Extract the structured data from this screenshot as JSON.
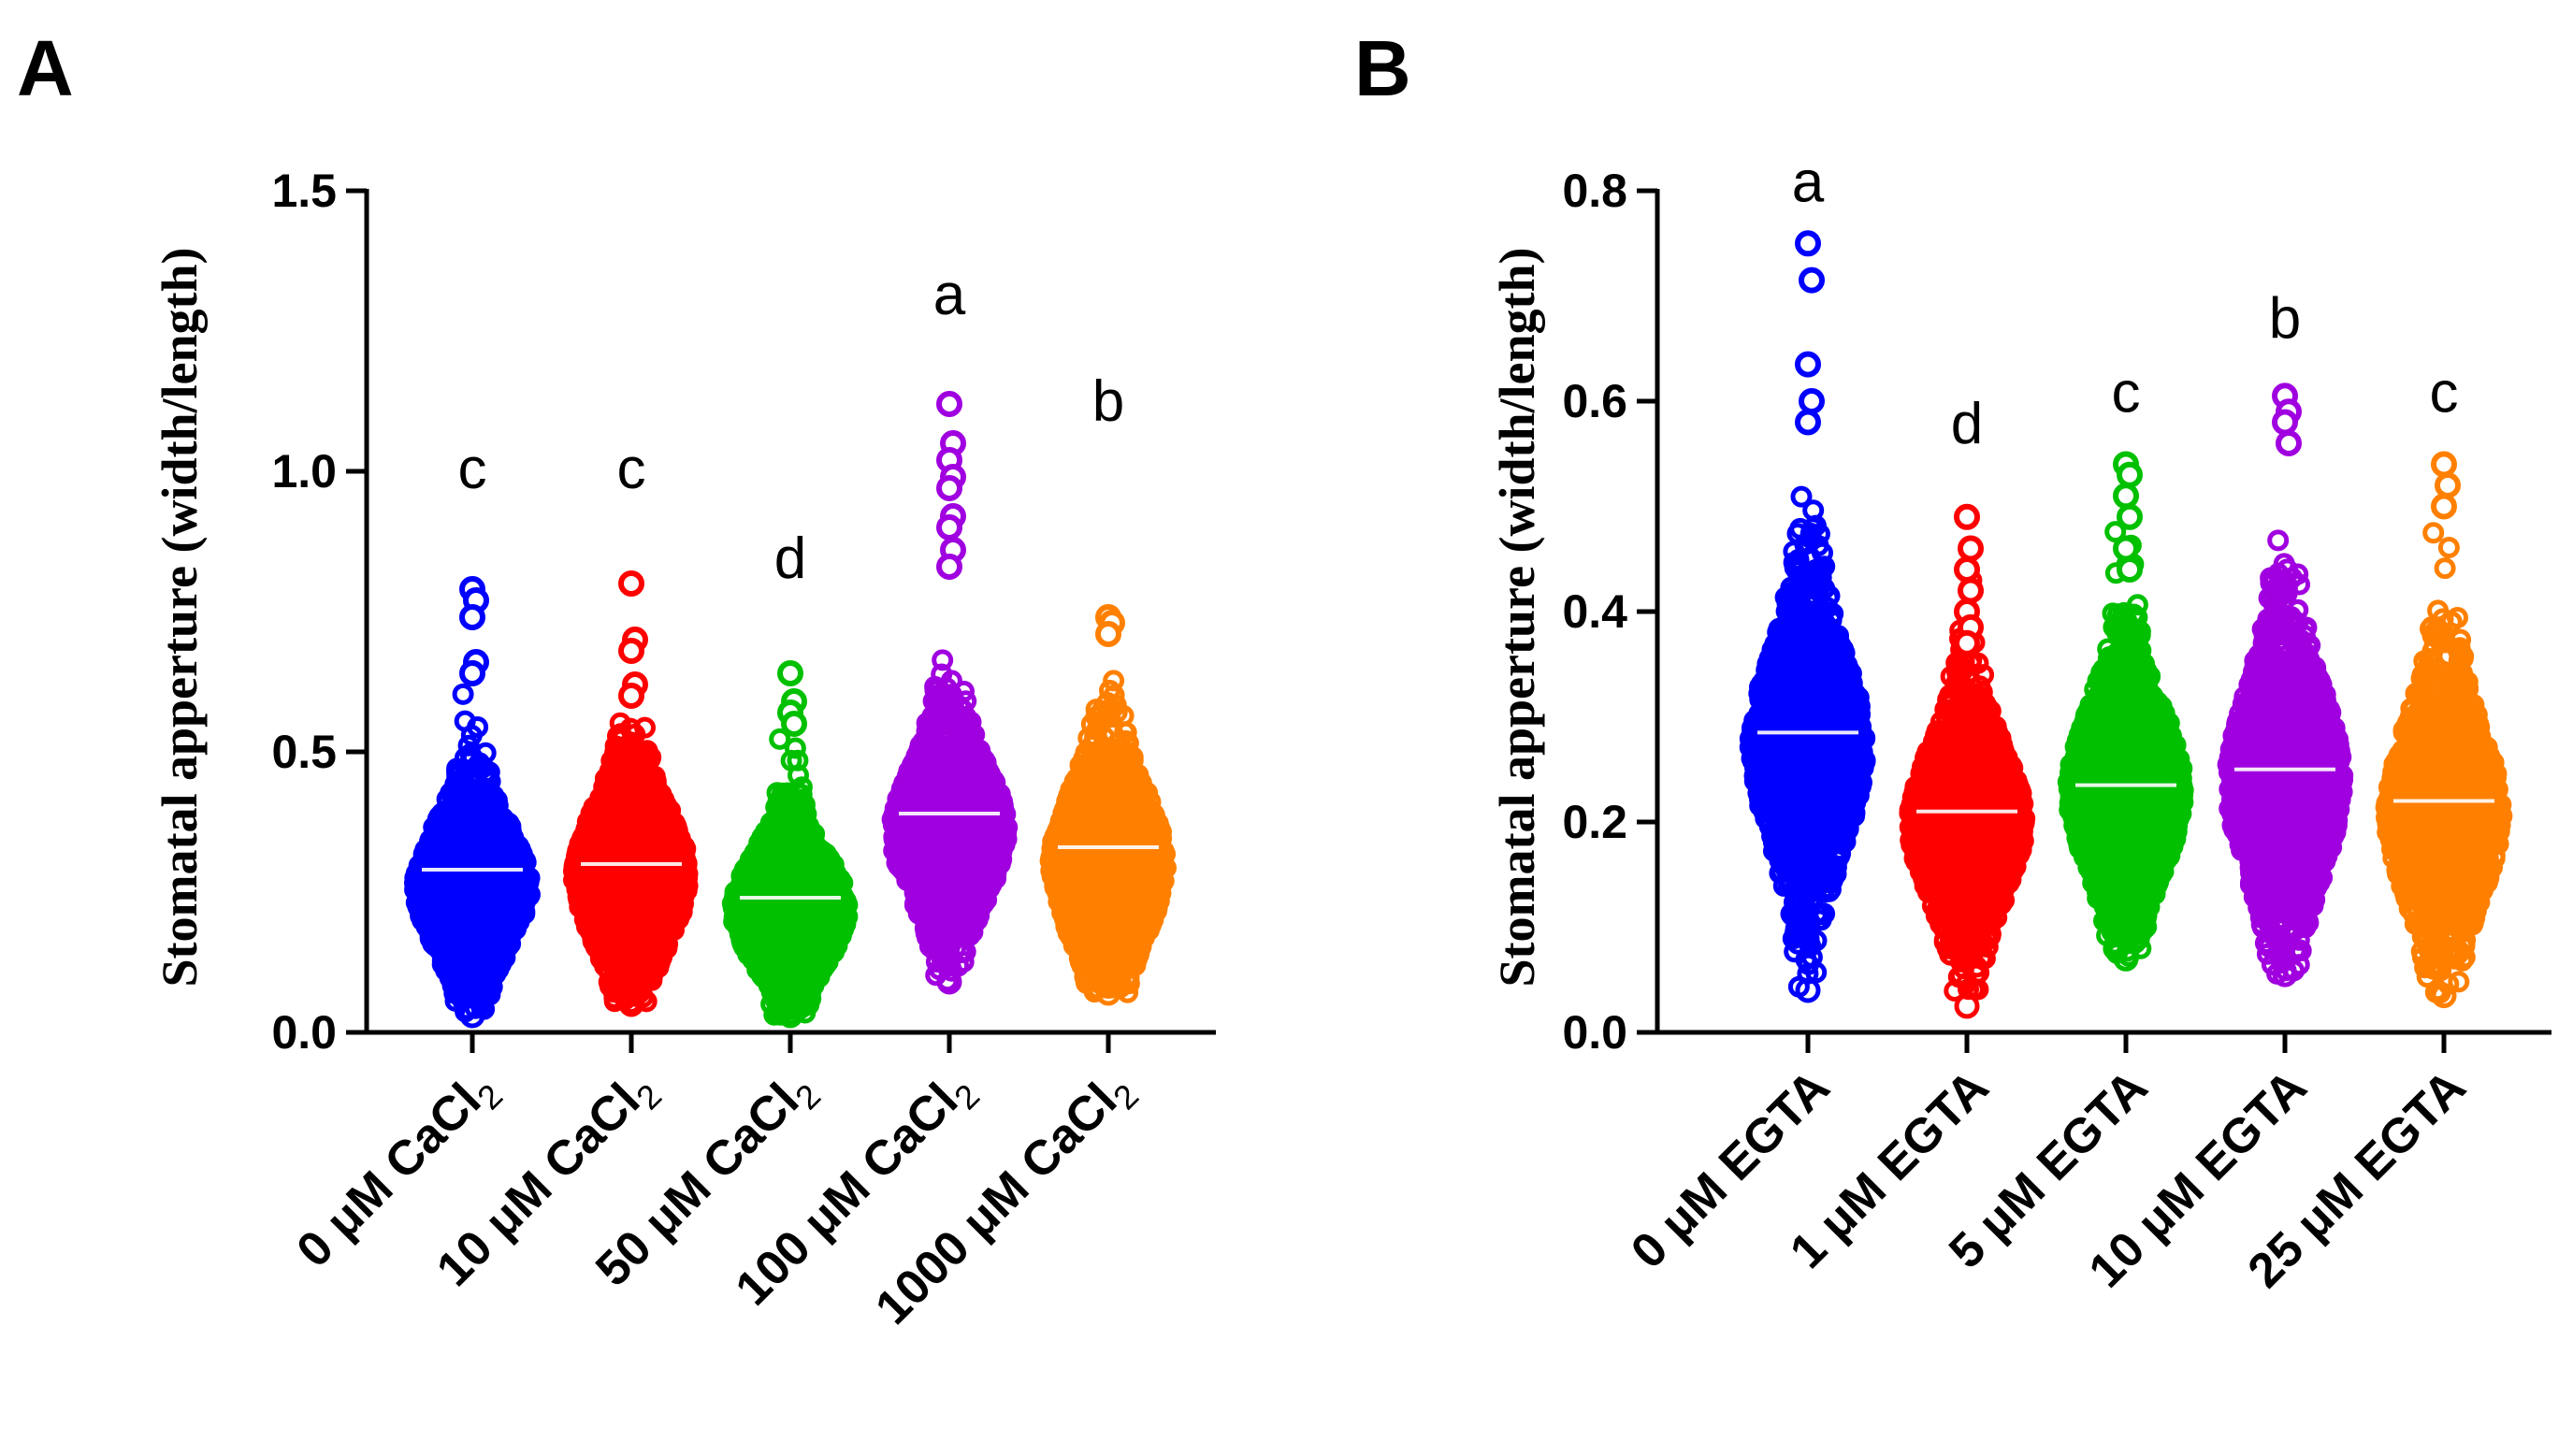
{
  "chart_data": [
    {
      "type": "scatter",
      "subtype": "violin-dot-plot",
      "panel": "A",
      "ylabel": "Stomatal apperture (width/length)",
      "ylim": [
        0,
        1.5
      ],
      "yticks": [
        "0.0",
        "0.5",
        "1.0",
        "1.5"
      ],
      "categories": [
        {
          "main": "0 μM CaCl",
          "sub": "2"
        },
        {
          "main": "10 μM CaCl",
          "sub": "2"
        },
        {
          "main": "50 μM CaCl",
          "sub": "2"
        },
        {
          "main": "100 μM CaCl",
          "sub": "2"
        },
        {
          "main": "1000 μM CaCl",
          "sub": "2"
        }
      ],
      "series": [
        {
          "name": "0 μM CaCl2",
          "color": "#0000ff",
          "letter": "c",
          "letter_y": 0.97,
          "mean": 0.29,
          "min": 0.03,
          "max": 0.79,
          "mode": 0.26,
          "spread": 0.09,
          "outliers": [
            0.79,
            0.77,
            0.74,
            0.66,
            0.64
          ]
        },
        {
          "name": "10 μM CaCl2",
          "color": "#ff0000",
          "letter": "c",
          "letter_y": 0.97,
          "mean": 0.3,
          "min": 0.05,
          "max": 0.8,
          "mode": 0.28,
          "spread": 0.1,
          "outliers": [
            0.8,
            0.7,
            0.68,
            0.62,
            0.6
          ]
        },
        {
          "name": "50 μM CaCl2",
          "color": "#00c000",
          "letter": "d",
          "letter_y": 0.81,
          "mean": 0.24,
          "min": 0.03,
          "max": 0.64,
          "mode": 0.22,
          "spread": 0.08,
          "outliers": [
            0.64,
            0.59,
            0.57,
            0.55
          ]
        },
        {
          "name": "100 μM CaCl2",
          "color": "#a000e0",
          "letter": "a",
          "letter_y": 1.28,
          "mean": 0.39,
          "min": 0.09,
          "max": 1.12,
          "mode": 0.36,
          "spread": 0.1,
          "outliers": [
            1.12,
            1.05,
            1.02,
            0.99,
            0.97,
            0.92,
            0.9,
            0.86,
            0.83
          ]
        },
        {
          "name": "1000 μM CaCl2",
          "color": "#ff8000",
          "letter": "b",
          "letter_y": 1.09,
          "mean": 0.33,
          "min": 0.07,
          "max": 0.74,
          "mode": 0.3,
          "spread": 0.11,
          "outliers": [
            0.74,
            0.73,
            0.71
          ]
        }
      ]
    },
    {
      "type": "scatter",
      "subtype": "violin-dot-plot",
      "panel": "B",
      "ylabel": "Stomatal apperture (width/length)",
      "ylim": [
        0,
        0.8
      ],
      "yticks": [
        "0.0",
        "0.2",
        "0.4",
        "0.6",
        "0.8"
      ],
      "categories": [
        {
          "main": "0 μM EGTA",
          "sub": ""
        },
        {
          "main": "1 μM EGTA",
          "sub": ""
        },
        {
          "main": "5 μM EGTA",
          "sub": ""
        },
        {
          "main": "10 μM EGTA",
          "sub": ""
        },
        {
          "main": "25 μM EGTA",
          "sub": ""
        }
      ],
      "series": [
        {
          "name": "0 μM EGTA",
          "color": "#0000ff",
          "letter": "a",
          "letter_y": 0.79,
          "mean": 0.285,
          "min": 0.04,
          "max": 0.75,
          "mode": 0.27,
          "spread": 0.075,
          "outliers": [
            0.75,
            0.715,
            0.635,
            0.6,
            0.58
          ]
        },
        {
          "name": "1 μM EGTA",
          "color": "#ff0000",
          "letter": "d",
          "letter_y": 0.56,
          "mean": 0.21,
          "min": 0.025,
          "max": 0.49,
          "mode": 0.2,
          "spread": 0.06,
          "outliers": [
            0.49,
            0.46,
            0.44,
            0.42,
            0.4,
            0.385,
            0.37
          ]
        },
        {
          "name": "5 μM EGTA",
          "color": "#00c000",
          "letter": "c",
          "letter_y": 0.59,
          "mean": 0.235,
          "min": 0.07,
          "max": 0.54,
          "mode": 0.23,
          "spread": 0.065,
          "outliers": [
            0.54,
            0.53,
            0.51,
            0.49,
            0.46,
            0.44
          ]
        },
        {
          "name": "10 μM EGTA",
          "color": "#a000e0",
          "letter": "b",
          "letter_y": 0.66,
          "mean": 0.25,
          "min": 0.055,
          "max": 0.605,
          "mode": 0.24,
          "spread": 0.075,
          "outliers": [
            0.605,
            0.59,
            0.58,
            0.56
          ]
        },
        {
          "name": "25 μM EGTA",
          "color": "#ff8000",
          "letter": "c",
          "letter_y": 0.59,
          "mean": 0.22,
          "min": 0.035,
          "max": 0.54,
          "mode": 0.21,
          "spread": 0.07,
          "outliers": [
            0.54,
            0.52,
            0.5
          ]
        }
      ]
    }
  ]
}
